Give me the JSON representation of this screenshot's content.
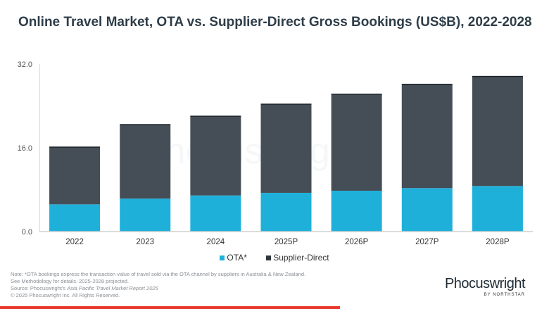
{
  "chart_data": {
    "type": "bar",
    "stacked": true,
    "title": "Online Travel Market, OTA vs. Supplier-Direct Gross Bookings (US$B), 2022-2028",
    "categories": [
      "2022",
      "2023",
      "2024",
      "2025P",
      "2026P",
      "2027P",
      "2028P"
    ],
    "series": [
      {
        "name": "OTA*",
        "color": "#1fb0da",
        "values": [
          5.2,
          6.3,
          6.9,
          7.4,
          7.8,
          8.3,
          8.7
        ]
      },
      {
        "name": "Supplier-Direct",
        "color": "#454e57",
        "values": [
          10.9,
          14.1,
          15.1,
          16.9,
          18.4,
          19.8,
          20.9
        ]
      }
    ],
    "yticks": [
      "0.0",
      "16.0",
      "32.0"
    ],
    "ylim": [
      0,
      32
    ],
    "grid": false,
    "legend": "bottom"
  },
  "notes": [
    "Note: *OTA bookings express the transaction value of travel sold via the OTA channel by suppliers in Australia & New Zealand.",
    "See Methodology for details. 2025-2028 projected."
  ],
  "source_prefix": "Source: Phocuswright's ",
  "source_title": "Asia Pacific Travel Market Report 2025",
  "copyright": "© 2025 Phocuswright Inc. All Rights Reserved.",
  "logo": {
    "name": "Phocuswright",
    "by": "BY NORTHSTAR"
  },
  "watermark": "Phocuswright"
}
